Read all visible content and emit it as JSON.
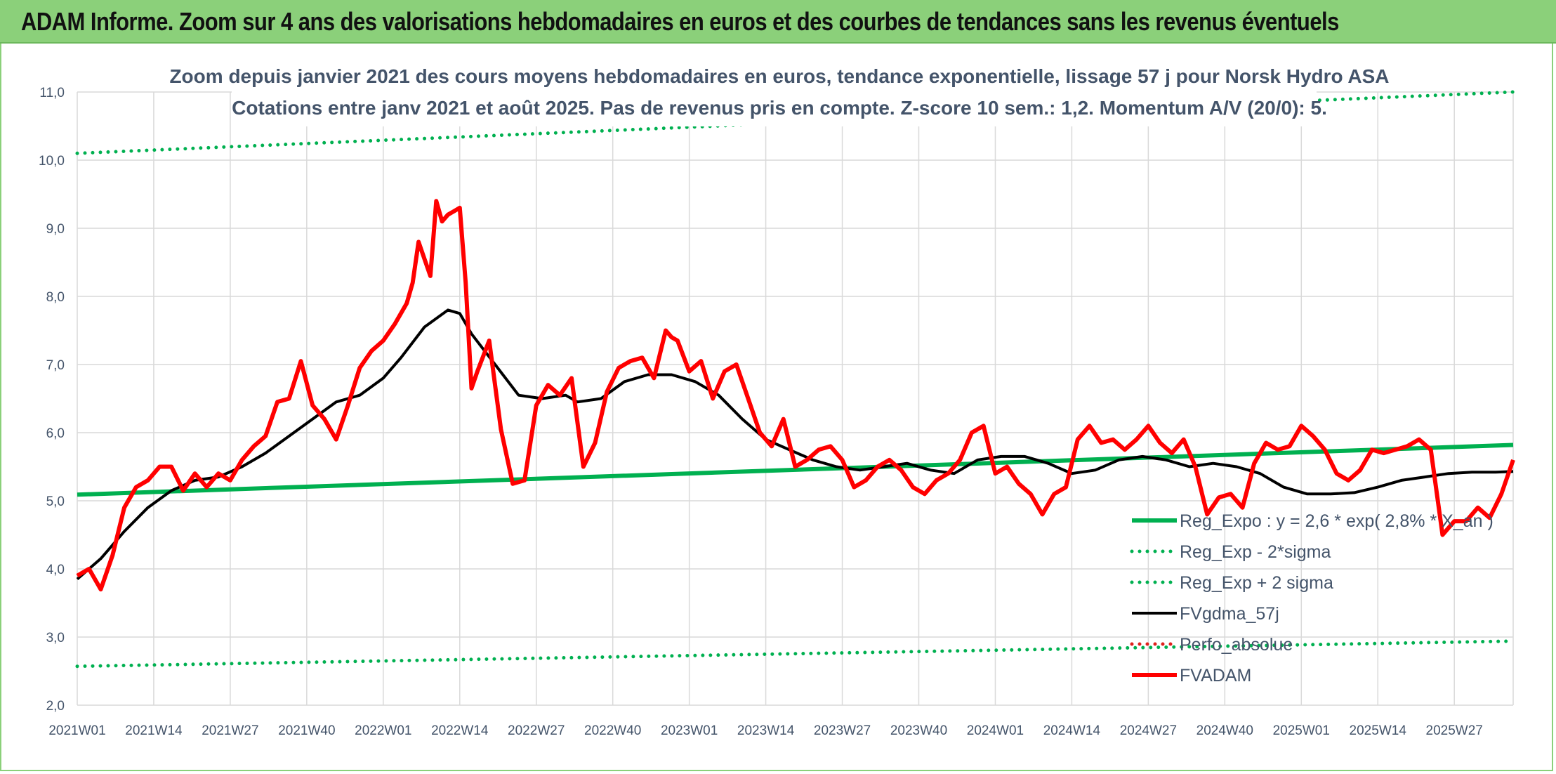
{
  "header": {
    "title": "ADAM Informe. Zoom sur 4 ans des valorisations hebdomadaires en euros et des courbes de tendances sans les revenus éventuels"
  },
  "colors": {
    "header_bg": "#8bd07a",
    "reg_expo": "#00b050",
    "fvgdma": "#000000",
    "perfo": "#e0201b",
    "fvadam": "#ff0000",
    "grid": "#d9d9d9",
    "text": "#44546a"
  },
  "chart_data": {
    "type": "line",
    "title": "Zoom depuis janvier 2021 des cours moyens hebdomadaires en euros, tendance exponentielle, lissage 57 j pour Norsk Hydro ASA",
    "subtitle": "Cotations entre janv 2021 et août 2025. Pas de revenus pris en compte. Z-score 10 sem.: 1,2. Momentum A/V (20/0): 5.",
    "ylim": [
      2.0,
      11.0
    ],
    "y_ticks": [
      "2,0",
      "3,0",
      "4,0",
      "5,0",
      "6,0",
      "7,0",
      "8,0",
      "9,0",
      "10,0",
      "11,0"
    ],
    "x_tick_labels": [
      "2021W01",
      "2021W14",
      "2021W27",
      "2021W40",
      "2022W01",
      "2022W14",
      "2022W27",
      "2022W40",
      "2023W01",
      "2023W14",
      "2023W27",
      "2023W40",
      "2024W01",
      "2024W14",
      "2024W27",
      "2024W40",
      "2025W01",
      "2025W14",
      "2025W27"
    ],
    "x_range_weeks": [
      0,
      244
    ],
    "grid": true,
    "legend_position": "right",
    "series": [
      {
        "name": "Reg_Expo : y = 2,6 * exp( 2,8% * X_an )",
        "style": "solid-thick",
        "color": "#00b050",
        "x": [
          0,
          244
        ],
        "values": [
          5.09,
          5.82
        ]
      },
      {
        "name": "Reg_Exp - 2*sigma",
        "style": "dotted",
        "color": "#00b050",
        "x": [
          0,
          244
        ],
        "values": [
          2.57,
          2.94
        ]
      },
      {
        "name": "Reg_Exp + 2 sigma",
        "style": "dotted",
        "color": "#00b050",
        "x": [
          0,
          244
        ],
        "values": [
          10.1,
          11.0
        ]
      },
      {
        "name": "FVgdma_57j",
        "style": "solid",
        "color": "#000000",
        "x": [
          0,
          4,
          8,
          12,
          16,
          20,
          24,
          28,
          32,
          36,
          40,
          44,
          48,
          52,
          55,
          59,
          63,
          65,
          67,
          71,
          75,
          79,
          83,
          85,
          89,
          93,
          97,
          101,
          105,
          109,
          113,
          117,
          121,
          125,
          129,
          133,
          137,
          141,
          145,
          149,
          153,
          157,
          161,
          165,
          169,
          173,
          177,
          181,
          185,
          189,
          193,
          197,
          201,
          205,
          209,
          213,
          217,
          221,
          225,
          229,
          233,
          237,
          241,
          244
        ],
        "values": [
          3.85,
          4.15,
          4.55,
          4.9,
          5.15,
          5.3,
          5.35,
          5.5,
          5.7,
          5.95,
          6.2,
          6.45,
          6.55,
          6.8,
          7.1,
          7.55,
          7.8,
          7.75,
          7.45,
          7.0,
          6.55,
          6.5,
          6.55,
          6.45,
          6.5,
          6.75,
          6.85,
          6.85,
          6.75,
          6.55,
          6.2,
          5.9,
          5.75,
          5.6,
          5.5,
          5.45,
          5.5,
          5.55,
          5.45,
          5.4,
          5.6,
          5.65,
          5.65,
          5.55,
          5.4,
          5.45,
          5.6,
          5.65,
          5.6,
          5.5,
          5.55,
          5.5,
          5.4,
          5.2,
          5.1,
          5.1,
          5.12,
          5.2,
          5.3,
          5.35,
          5.4,
          5.42,
          5.42,
          5.43
        ]
      },
      {
        "name": "Perfo_absolue",
        "style": "dotted",
        "color": "#e0201b",
        "x": [],
        "values": []
      },
      {
        "name": "FVADAM",
        "style": "solid-thick",
        "color": "#ff0000",
        "x": [
          0,
          2,
          4,
          6,
          8,
          10,
          12,
          14,
          16,
          18,
          20,
          22,
          24,
          26,
          28,
          30,
          32,
          34,
          36,
          38,
          40,
          42,
          44,
          46,
          48,
          50,
          52,
          54,
          56,
          57,
          58,
          60,
          61,
          62,
          63,
          64,
          65,
          66,
          67,
          68,
          70,
          72,
          74,
          76,
          78,
          80,
          82,
          84,
          86,
          88,
          90,
          92,
          94,
          96,
          98,
          100,
          101,
          102,
          104,
          106,
          108,
          110,
          112,
          114,
          116,
          118,
          120,
          122,
          124,
          126,
          128,
          130,
          132,
          134,
          136,
          138,
          140,
          142,
          144,
          146,
          148,
          150,
          152,
          154,
          156,
          158,
          160,
          162,
          164,
          166,
          168,
          170,
          172,
          174,
          176,
          178,
          180,
          182,
          184,
          186,
          188,
          190,
          192,
          194,
          196,
          198,
          200,
          202,
          204,
          206,
          208,
          210,
          212,
          214,
          216,
          218,
          220,
          222,
          224,
          226,
          228,
          230,
          232,
          234,
          236,
          238,
          240,
          242,
          244
        ],
        "values": [
          3.9,
          4.0,
          3.7,
          4.2,
          4.9,
          5.2,
          5.3,
          5.5,
          5.5,
          5.15,
          5.4,
          5.2,
          5.4,
          5.3,
          5.6,
          5.8,
          5.95,
          6.45,
          6.5,
          7.05,
          6.4,
          6.2,
          5.9,
          6.4,
          6.95,
          7.2,
          7.35,
          7.6,
          7.9,
          8.2,
          8.8,
          8.3,
          9.4,
          9.1,
          9.2,
          9.25,
          9.3,
          8.2,
          6.65,
          6.9,
          7.35,
          6.05,
          5.25,
          5.3,
          6.4,
          6.7,
          6.55,
          6.8,
          5.5,
          5.85,
          6.6,
          6.95,
          7.05,
          7.1,
          6.8,
          7.5,
          7.4,
          7.35,
          6.9,
          7.05,
          6.5,
          6.9,
          7.0,
          6.5,
          6.0,
          5.8,
          6.2,
          5.5,
          5.6,
          5.75,
          5.8,
          5.6,
          5.2,
          5.3,
          5.5,
          5.6,
          5.45,
          5.2,
          5.1,
          5.3,
          5.4,
          5.6,
          6.0,
          6.1,
          5.4,
          5.5,
          5.25,
          5.1,
          4.8,
          5.1,
          5.2,
          5.9,
          6.1,
          5.85,
          5.9,
          5.75,
          5.9,
          6.1,
          5.85,
          5.7,
          5.9,
          5.5,
          4.8,
          5.05,
          5.1,
          4.9,
          5.55,
          5.85,
          5.75,
          5.8,
          6.1,
          5.95,
          5.75,
          5.4,
          5.3,
          5.45,
          5.75,
          5.7,
          5.75,
          5.8,
          5.9,
          5.75,
          4.5,
          4.7,
          4.7,
          4.9,
          4.75,
          5.1,
          5.6
        ]
      }
    ]
  },
  "legend": {
    "items": [
      "Reg_Expo : y = 2,6 * exp( 2,8% * X_an )",
      "Reg_Exp - 2*sigma",
      "Reg_Exp + 2 sigma",
      "FVgdma_57j",
      "Perfo_absolue",
      "FVADAM"
    ]
  }
}
